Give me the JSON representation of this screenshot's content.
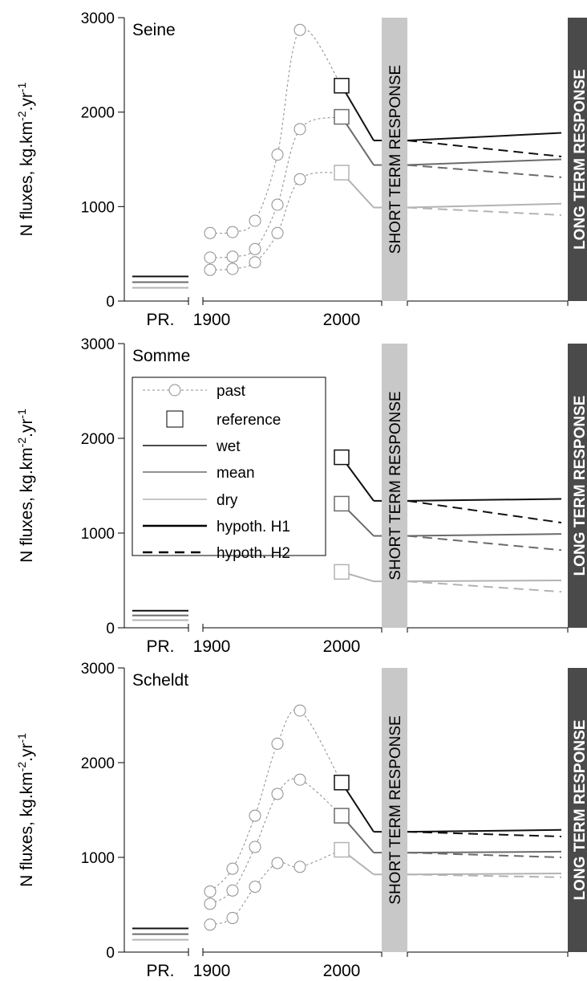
{
  "chart_data": [
    {
      "type": "line",
      "title": "Seine",
      "ylabel_text": "N fluxes, kg.km",
      "ylabel_sup1": "-2",
      "ylabel_mid": ".yr",
      "ylabel_sup2": "-1",
      "yticks": [
        "0",
        "1000",
        "2000",
        "3000"
      ],
      "xticks": [
        "PR.",
        "1900",
        "2000"
      ],
      "ylim": [
        0,
        3000
      ],
      "short_term_label": "SHORT TERM RESPONSE",
      "long_term_label": "LONG TERM RESPONSE",
      "pristine": {
        "wet": 260,
        "mean": 200,
        "dry": 140
      },
      "past": [
        {
          "x": [
            1900,
            1910,
            1920,
            1930,
            1940,
            1950
          ],
          "y": [
            720,
            730,
            850,
            1550,
            2870,
            2870
          ]
        },
        {
          "x": [
            1900,
            1910,
            1920,
            1930,
            1940,
            1950
          ],
          "y": [
            460,
            470,
            550,
            1020,
            1820,
            1820
          ]
        },
        {
          "x": [
            1900,
            1910,
            1920,
            1930,
            1940,
            1950
          ],
          "y": [
            330,
            340,
            410,
            720,
            1290,
            1290
          ]
        }
      ],
      "past_points": {
        "wet": {
          "x": [
            1900,
            1910,
            1920,
            1930,
            1940
          ],
          "y": [
            720,
            730,
            850,
            1550,
            2870
          ]
        },
        "mean": {
          "x": [
            1900,
            1910,
            1920,
            1930,
            1940
          ],
          "y": [
            460,
            470,
            550,
            1020,
            1820
          ]
        },
        "dry": {
          "x": [
            1900,
            1910,
            1920,
            1930,
            1940
          ],
          "y": [
            330,
            340,
            410,
            720,
            1290
          ]
        }
      },
      "reference": {
        "wet": 2280,
        "mean": 1950,
        "dry": 1360
      },
      "short_term": {
        "wet": 1700,
        "mean": 1440,
        "dry": 990
      },
      "long_term_H1": {
        "wet": 1780,
        "mean": 1500,
        "dry": 1030
      },
      "long_term_H2": {
        "wet": 1530,
        "mean": 1310,
        "dry": 910
      }
    },
    {
      "type": "line",
      "title": "Somme",
      "ylabel_text": "N fluxes, kg.km",
      "ylabel_sup1": "-2",
      "ylabel_mid": ".yr",
      "ylabel_sup2": "-1",
      "yticks": [
        "0",
        "1000",
        "2000",
        "3000"
      ],
      "xticks": [
        "PR.",
        "1900",
        "2000"
      ],
      "ylim": [
        0,
        3000
      ],
      "short_term_label": "SHORT TERM RESPONSE",
      "long_term_label": "LONG TERM RESPONSE",
      "pristine": {
        "wet": 180,
        "mean": 130,
        "dry": 80
      },
      "reference": {
        "wet": 1800,
        "mean": 1310,
        "dry": 590
      },
      "short_term": {
        "wet": 1340,
        "mean": 970,
        "dry": 490
      },
      "long_term_H1": {
        "wet": 1360,
        "mean": 990,
        "dry": 500
      },
      "long_term_H2": {
        "wet": 1110,
        "mean": 820,
        "dry": 380
      }
    },
    {
      "type": "line",
      "title": "Scheldt",
      "ylabel_text": "N fluxes, kg.km",
      "ylabel_sup1": "-2",
      "ylabel_mid": ".yr",
      "ylabel_sup2": "-1",
      "yticks": [
        "0",
        "1000",
        "2000",
        "3000"
      ],
      "xticks": [
        "PR.",
        "1900",
        "2000"
      ],
      "ylim": [
        0,
        3000
      ],
      "short_term_label": "SHORT TERM RESPONSE",
      "long_term_label": "LONG TERM RESPONSE",
      "pristine": {
        "wet": 250,
        "mean": 190,
        "dry": 130
      },
      "past_points": {
        "wet": {
          "x": [
            1900,
            1910,
            1920,
            1930,
            1940
          ],
          "y": [
            640,
            880,
            1440,
            2200,
            2550
          ]
        },
        "mean": {
          "x": [
            1900,
            1910,
            1920,
            1930,
            1940
          ],
          "y": [
            510,
            650,
            1110,
            1670,
            1820
          ]
        },
        "dry": {
          "x": [
            1900,
            1910,
            1920,
            1930,
            1940
          ],
          "y": [
            290,
            360,
            690,
            940,
            900
          ]
        }
      },
      "reference": {
        "wet": 1790,
        "mean": 1440,
        "dry": 1080
      },
      "short_term": {
        "wet": 1270,
        "mean": 1050,
        "dry": 820
      },
      "long_term_H1": {
        "wet": 1290,
        "mean": 1060,
        "dry": 830
      },
      "long_term_H2": {
        "wet": 1220,
        "mean": 1000,
        "dry": 790
      }
    }
  ],
  "legend": {
    "past": "past",
    "reference": "reference",
    "wet": "wet",
    "mean": "mean",
    "dry": "dry",
    "h1": "hypoth. H1",
    "h2": "hypoth. H2"
  },
  "colors": {
    "wet": "#111111",
    "mean": "#6b6b6b",
    "dry": "#b3b3b3",
    "past_line": "#8c8c8c",
    "short_band": "#c8c8c8",
    "long_band": "#4a4a4a"
  }
}
